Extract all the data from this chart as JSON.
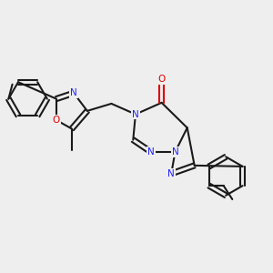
{
  "background_color": "#eeeeee",
  "bond_color": "#1a1a1a",
  "N_color": "#2020ff",
  "O_color": "#dd0000",
  "line_width": 1.5,
  "figsize": [
    3.0,
    3.0
  ],
  "dpi": 100,
  "xlim": [
    -2.8,
    2.8
  ],
  "ylim": [
    -1.8,
    1.8
  ]
}
